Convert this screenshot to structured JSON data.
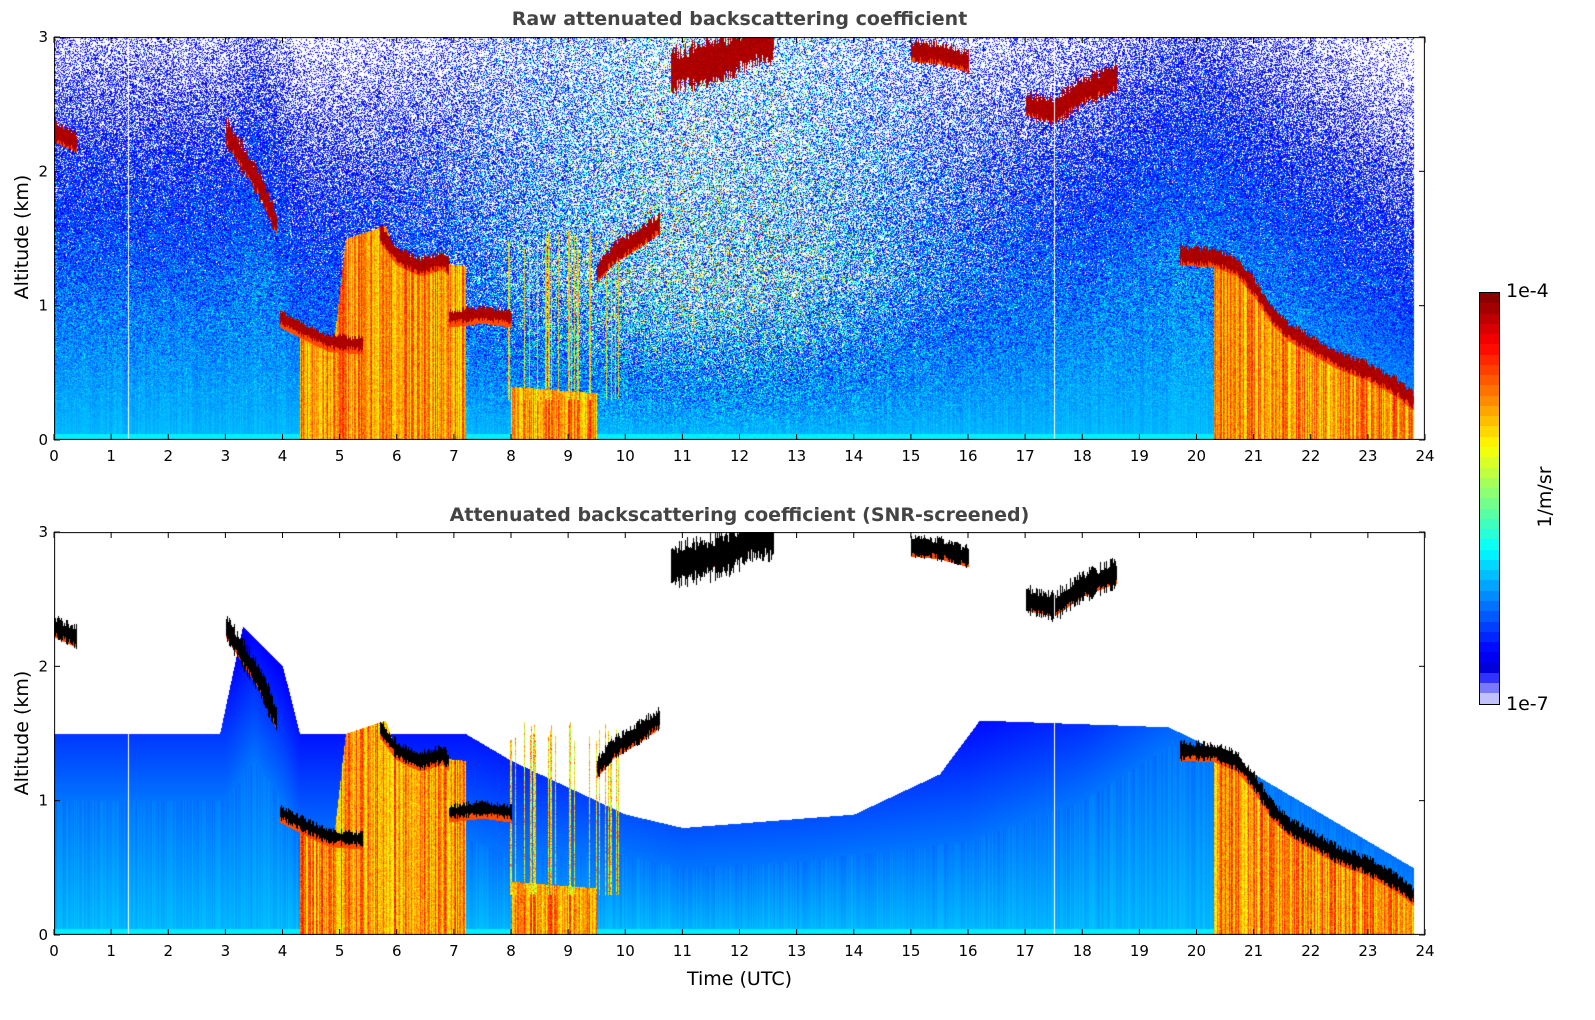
{
  "chart_data": [
    {
      "type": "heatmap",
      "title": "Raw attenuated backscattering coefficient",
      "xlabel": "",
      "ylabel": "Altitude (km)",
      "xlim": [
        0,
        24
      ],
      "ylim": [
        0,
        3
      ],
      "xticks": [
        "0",
        "1",
        "2",
        "3",
        "4",
        "5",
        "6",
        "7",
        "8",
        "9",
        "10",
        "11",
        "12",
        "13",
        "14",
        "15",
        "16",
        "17",
        "18",
        "19",
        "20",
        "21",
        "22",
        "23",
        "24"
      ],
      "yticks": [
        "0",
        "1",
        "2",
        "3"
      ],
      "screened": false
    },
    {
      "type": "heatmap",
      "title": "Attenuated backscattering coefficient (SNR-screened)",
      "xlabel": "Time (UTC)",
      "ylabel": "Altitude (km)",
      "xlim": [
        0,
        24
      ],
      "ylim": [
        0,
        3
      ],
      "xticks": [
        "0",
        "1",
        "2",
        "3",
        "4",
        "5",
        "6",
        "7",
        "8",
        "9",
        "10",
        "11",
        "12",
        "13",
        "14",
        "15",
        "16",
        "17",
        "18",
        "19",
        "20",
        "21",
        "22",
        "23",
        "24"
      ],
      "yticks": [
        "0",
        "1",
        "2",
        "3"
      ],
      "screened": true
    }
  ],
  "colorbar": {
    "label": "1/m/sr",
    "max_label": "1e-4",
    "min_label": "1e-7",
    "scale": "log",
    "range": [
      1e-07,
      0.0001
    ],
    "colormap": "jet"
  },
  "scene": {
    "data_end_hour": 23.8,
    "gaps_hour": [
      1.3,
      17.5
    ],
    "cloud_layers": [
      {
        "pts": [
          [
            0,
            2.3
          ],
          [
            0.4,
            2.22
          ]
        ],
        "th": 0.06
      },
      {
        "pts": [
          [
            3.0,
            2.3
          ],
          [
            3.3,
            2.1
          ],
          [
            3.6,
            1.9
          ],
          [
            3.9,
            1.6
          ]
        ],
        "th": 0.08
      },
      {
        "pts": [
          [
            3.95,
            0.92
          ],
          [
            4.4,
            0.82
          ],
          [
            4.8,
            0.74
          ],
          [
            5.4,
            0.72
          ]
        ],
        "th": 0.04
      },
      {
        "pts": [
          [
            5.7,
            1.55
          ],
          [
            6.0,
            1.38
          ],
          [
            6.4,
            1.3
          ],
          [
            6.8,
            1.35
          ],
          [
            6.9,
            1.3
          ]
        ],
        "th": 0.05
      },
      {
        "pts": [
          [
            6.9,
            0.92
          ],
          [
            7.5,
            0.95
          ],
          [
            8.0,
            0.92
          ]
        ],
        "th": 0.04
      },
      {
        "pts": [
          [
            9.5,
            1.25
          ],
          [
            9.8,
            1.4
          ],
          [
            10.2,
            1.5
          ],
          [
            10.6,
            1.62
          ]
        ],
        "th": 0.06
      },
      {
        "pts": [
          [
            10.8,
            2.75
          ],
          [
            11.3,
            2.8
          ],
          [
            11.8,
            2.85
          ],
          [
            12.2,
            2.95
          ],
          [
            12.6,
            2.98
          ]
        ],
        "th": 0.12
      },
      {
        "pts": [
          [
            15.0,
            2.9
          ],
          [
            15.5,
            2.88
          ],
          [
            16.0,
            2.82
          ]
        ],
        "th": 0.06
      },
      {
        "pts": [
          [
            17.0,
            2.5
          ],
          [
            17.5,
            2.45
          ],
          [
            18.0,
            2.6
          ],
          [
            18.6,
            2.7
          ]
        ],
        "th": 0.08
      },
      {
        "pts": [
          [
            19.7,
            1.38
          ],
          [
            20.3,
            1.37
          ],
          [
            20.7,
            1.3
          ],
          [
            21.0,
            1.15
          ],
          [
            21.3,
            0.95
          ],
          [
            21.6,
            0.82
          ],
          [
            22.0,
            0.72
          ],
          [
            22.5,
            0.6
          ],
          [
            23.0,
            0.52
          ],
          [
            23.5,
            0.4
          ],
          [
            23.8,
            0.3
          ]
        ],
        "th": 0.05
      }
    ],
    "precip_regions": [
      [
        [
          4.3,
          0.8
        ],
        [
          4.9,
          0.75
        ],
        [
          5.1,
          1.5
        ],
        [
          5.8,
          1.6
        ],
        [
          6.0,
          1.35
        ],
        [
          7.2,
          1.3
        ]
      ],
      [
        [
          8.0,
          0.4
        ],
        [
          9.5,
          0.35
        ]
      ],
      [
        [
          20.3,
          1.35
        ],
        [
          20.7,
          1.28
        ],
        [
          21.0,
          1.12
        ],
        [
          21.3,
          0.92
        ],
        [
          21.6,
          0.8
        ],
        [
          22.0,
          0.7
        ],
        [
          22.5,
          0.58
        ],
        [
          23.0,
          0.5
        ],
        [
          23.5,
          0.38
        ],
        [
          23.8,
          0.28
        ]
      ]
    ],
    "rain_streaks": {
      "t0": 7.9,
      "t1": 9.9,
      "top": 1.6
    },
    "boundary_layer_top": [
      [
        0,
        1.0
      ],
      [
        3,
        1.0
      ],
      [
        3.5,
        1.3
      ],
      [
        4.0,
        1.0
      ],
      [
        4.3,
        0.7
      ],
      [
        7.3,
        0.7
      ],
      [
        8,
        0.6
      ],
      [
        10,
        0.6
      ],
      [
        11,
        0.5
      ],
      [
        13,
        0.55
      ],
      [
        16,
        0.7
      ],
      [
        18,
        1.0
      ],
      [
        19.5,
        1.4
      ],
      [
        20.3,
        1.4
      ],
      [
        24,
        0.4
      ]
    ],
    "snr_limit": [
      [
        0,
        1.5
      ],
      [
        2.9,
        1.5
      ],
      [
        3.3,
        2.3
      ],
      [
        4,
        2.0
      ],
      [
        4.3,
        1.5
      ],
      [
        7.2,
        1.5
      ],
      [
        8,
        1.3
      ],
      [
        10,
        0.9
      ],
      [
        11,
        0.8
      ],
      [
        14,
        0.9
      ],
      [
        15.5,
        1.2
      ],
      [
        16.2,
        1.6
      ],
      [
        19.5,
        1.55
      ],
      [
        20,
        1.45
      ],
      [
        24,
        0.45
      ]
    ]
  }
}
